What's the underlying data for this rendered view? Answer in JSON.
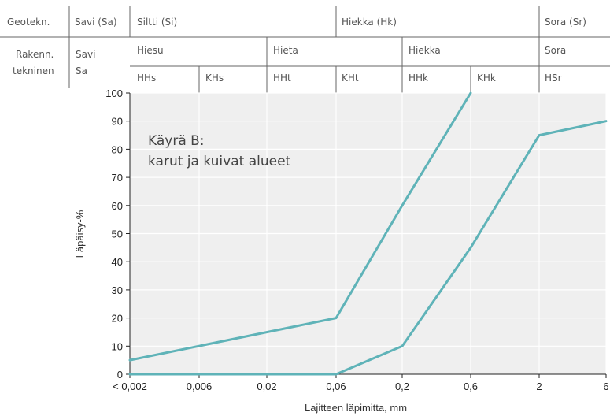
{
  "header": {
    "row1": {
      "label": "Geotekn.",
      "cells": [
        "Savi (Sa)",
        "Siltti (Si)",
        "Hiekka (Hk)",
        "Sora (Sr)"
      ]
    },
    "row2": {
      "label_line1": "Rakenn.",
      "label_line2": "tekninen",
      "savi_line1": "Savi",
      "savi_line2": "Sa",
      "groups": [
        "Hiesu",
        "Hieta",
        "Hiekka",
        "Sora"
      ],
      "subgroups": [
        "HHs",
        "KHs",
        "HHt",
        "KHt",
        "HHk",
        "KHk",
        "HSr"
      ]
    }
  },
  "colors": {
    "curve": "#5fb3b8",
    "plot_bg": "#efefef",
    "grid": "#ffffff",
    "header_lines": "#666666"
  },
  "chart_data": {
    "type": "line",
    "title": "",
    "annotation_line1": "Käyrä B:",
    "annotation_line2": "karut ja kuivat alueet",
    "xlabel": "Lajitteen läpimitta, mm",
    "ylabel": "Läpäisy-%",
    "x_ticks": [
      "< 0,002",
      "0,006",
      "0,02",
      "0,06",
      "0,2",
      "0,6",
      "2",
      "6"
    ],
    "y_ticks": [
      "0",
      "10",
      "20",
      "30",
      "40",
      "50",
      "60",
      "70",
      "80",
      "90",
      "100"
    ],
    "ylim": [
      0,
      100
    ],
    "grid": true,
    "series": [
      {
        "x": [
          0.002,
          0.06,
          0.2,
          0.6
        ],
        "y": [
          5,
          20,
          60,
          100
        ]
      },
      {
        "x": [
          0.002,
          0.06,
          0.2,
          0.6,
          2,
          6
        ],
        "y": [
          0,
          0,
          10,
          45,
          85,
          90
        ]
      }
    ]
  }
}
